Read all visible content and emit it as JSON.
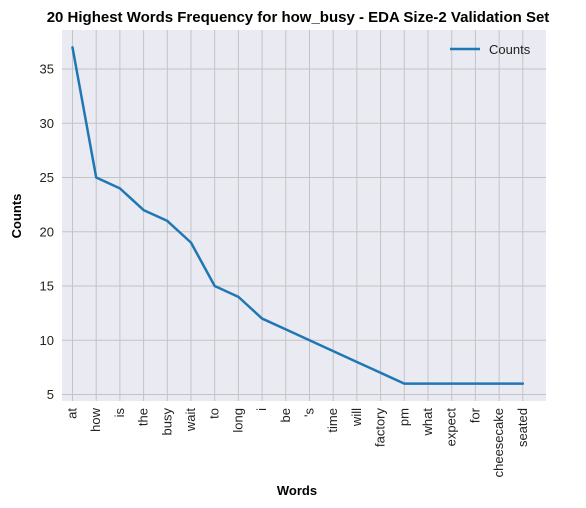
{
  "chart_data": {
    "type": "line",
    "title": "20 Highest Words Frequency for how_busy - EDA Size-2 Validation Set",
    "xlabel": "Words",
    "ylabel": "Counts",
    "categories": [
      "at",
      "how",
      "is",
      "the",
      "busy",
      "wait",
      "to",
      "long",
      "i",
      "be",
      "'s",
      "time",
      "will",
      "factory",
      "pm",
      "what",
      "expect",
      "for",
      "cheesecake",
      "seated"
    ],
    "series": [
      {
        "name": "Counts",
        "values": [
          37,
          25,
          24,
          22,
          21,
          19,
          15,
          14,
          12,
          11,
          10,
          9,
          8,
          7,
          6,
          6,
          6,
          6,
          6,
          6
        ]
      }
    ],
    "ylim": [
      4.4,
      38.6
    ],
    "yticks": [
      5,
      10,
      15,
      20,
      25,
      30,
      35
    ],
    "grid": true,
    "legend": "top-right",
    "colors": {
      "line": "#1f77b4",
      "plot_background": "#eaeaf2",
      "grid": "#c4c4c4"
    }
  }
}
